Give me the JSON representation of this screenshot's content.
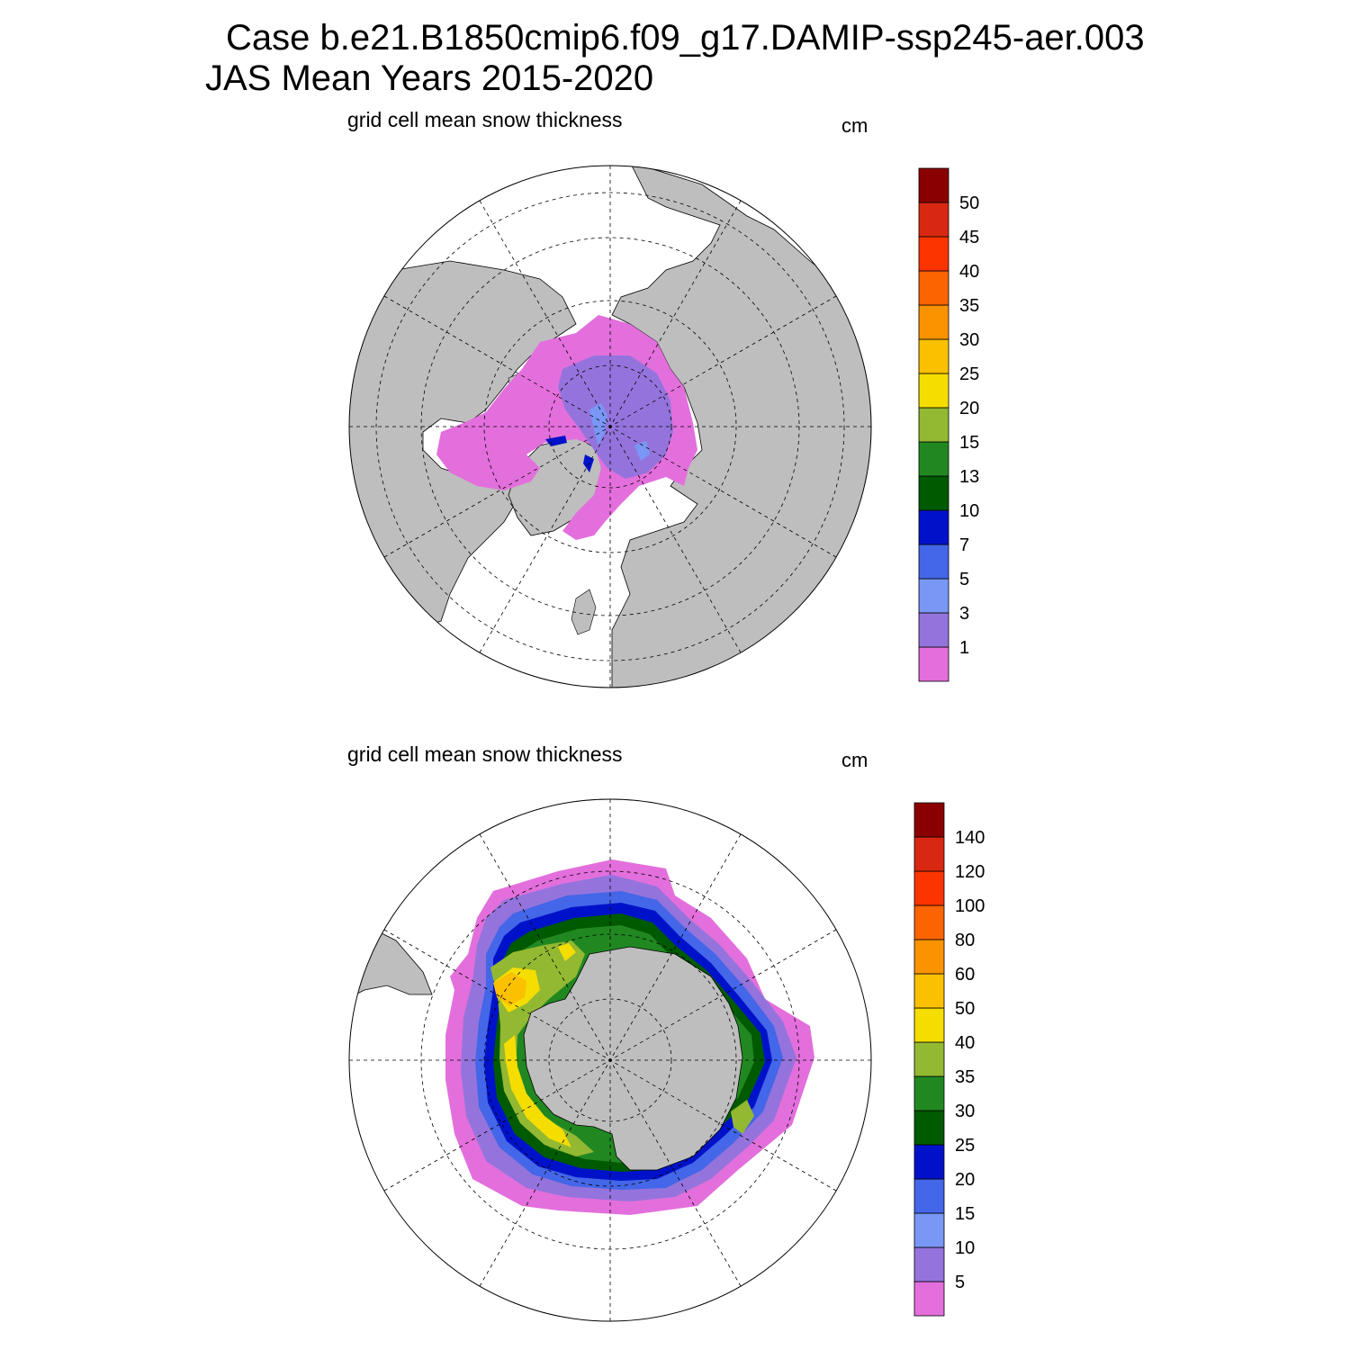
{
  "header": {
    "case_line": "Case b.e21.B1850cmip6.f09_g17.DAMIP-ssp245-aer.003",
    "period_line": "JAS Mean   Years 2015-2020"
  },
  "panels": [
    {
      "id": "north",
      "title": "grid cell mean snow thickness",
      "units": "cm",
      "colorbar": {
        "labels": [
          "1",
          "3",
          "5",
          "7",
          "10",
          "13",
          "15",
          "20",
          "25",
          "30",
          "35",
          "40",
          "45",
          "50"
        ],
        "colors": [
          "#e36fdc",
          "#9474dc",
          "#7997f4",
          "#4466e8",
          "#0012c9",
          "#005a00",
          "#218821",
          "#93b832",
          "#f5dd00",
          "#fbc000",
          "#fb9300",
          "#fb6400",
          "#fb3400",
          "#d92812",
          "#8a0000"
        ]
      }
    },
    {
      "id": "south",
      "title": "grid cell mean snow thickness",
      "units": "cm",
      "colorbar": {
        "labels": [
          "5",
          "10",
          "15",
          "20",
          "25",
          "30",
          "35",
          "40",
          "50",
          "60",
          "80",
          "100",
          "120",
          "140"
        ],
        "colors": [
          "#e36fdc",
          "#9474dc",
          "#7997f4",
          "#4466e8",
          "#0012c9",
          "#005a00",
          "#218821",
          "#93b832",
          "#f5dd00",
          "#fbc000",
          "#fb9300",
          "#fb6400",
          "#fb3400",
          "#d92812",
          "#8a0000"
        ]
      }
    }
  ],
  "map_colors": {
    "land": "#bebebe",
    "ocean": "#ffffff"
  }
}
